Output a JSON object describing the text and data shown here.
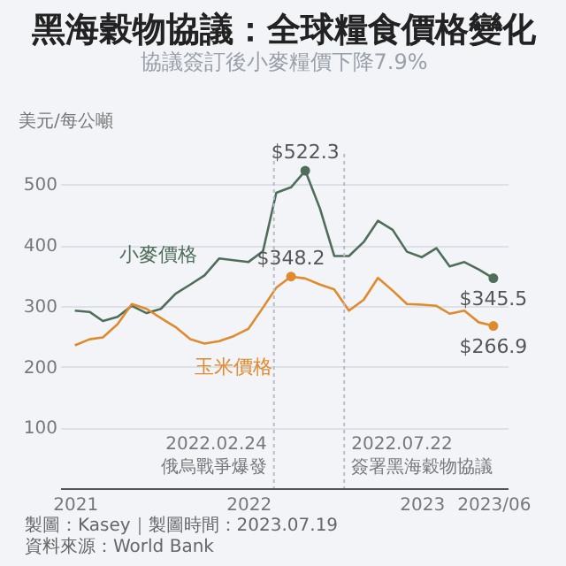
{
  "chart_data": {
    "type": "line",
    "title": "黑海穀物協議：全球糧食價格變化",
    "subtitle": "協議簽訂後小麥糧價下降7.9%",
    "ylabel": "美元/每公噸",
    "x": [
      "2021-01",
      "2021-02",
      "2021-03",
      "2021-04",
      "2021-05",
      "2021-06",
      "2021-07",
      "2021-08",
      "2021-09",
      "2021-10",
      "2021-11",
      "2021-12",
      "2022-01",
      "2022-02",
      "2022-03",
      "2022-04",
      "2022-05",
      "2022-06",
      "2022-07",
      "2022-08",
      "2022-09",
      "2022-10",
      "2022-11",
      "2022-12",
      "2023-01",
      "2023-02",
      "2023-03",
      "2023-04",
      "2023-05",
      "2023-06"
    ],
    "series": [
      {
        "name": "小麥價格",
        "color": "#4f6e5a",
        "values": [
          292,
          290,
          275,
          282,
          300,
          288,
          295,
          320,
          335,
          350,
          378,
          375,
          372,
          390,
          486,
          495,
          522.3,
          460,
          382,
          382,
          405,
          440,
          425,
          389,
          380,
          395,
          365,
          372,
          360,
          345.5
        ],
        "value_labels": [
          null,
          null,
          null,
          null,
          null,
          null,
          null,
          null,
          null,
          null,
          null,
          null,
          null,
          null,
          null,
          null,
          "$522.3",
          null,
          null,
          null,
          null,
          null,
          null,
          null,
          null,
          null,
          null,
          null,
          null,
          "$345.5"
        ]
      },
      {
        "name": "玉米價格",
        "color": "#e08a2e",
        "values": [
          235,
          245,
          248,
          270,
          303,
          295,
          280,
          265,
          245,
          238,
          242,
          250,
          262,
          297,
          330,
          348.2,
          345,
          335,
          327,
          292,
          310,
          346,
          325,
          303,
          302,
          300,
          287,
          292,
          273,
          266.9
        ],
        "value_labels": [
          null,
          null,
          null,
          null,
          null,
          null,
          null,
          null,
          null,
          null,
          null,
          null,
          null,
          null,
          null,
          "$348.2",
          null,
          null,
          null,
          null,
          null,
          null,
          null,
          null,
          null,
          null,
          null,
          null,
          null,
          "$266.9"
        ]
      }
    ],
    "xlim": [
      "2020-12",
      "2023-07"
    ],
    "xticks": [
      {
        "value": "2021-01",
        "label": "2021"
      },
      {
        "value": "2022-01",
        "label": "2022"
      },
      {
        "value": "2023-01",
        "label": "2023"
      },
      {
        "value": "2023-06",
        "label": "2023/06"
      }
    ],
    "ylim": [
      0,
      550
    ],
    "yticks": [
      100,
      200,
      300,
      400,
      500
    ],
    "grid": "y",
    "legend": false,
    "ref_lines": [
      {
        "axis": "x",
        "value": "2022-02-24",
        "label": "2022.02.24\n俄烏戰爭爆發",
        "line_style": "dotted",
        "color": "#b8bcc6"
      },
      {
        "axis": "x",
        "value": "2022-07-22",
        "label": "2022.07.22\n簽署黑海穀物協議",
        "line_style": "dotted",
        "color": "#b8bcc6"
      }
    ],
    "annotations": [
      "製圖：Kasey｜製圖時間：2023.07.19",
      "資料來源：World Bank"
    ]
  }
}
